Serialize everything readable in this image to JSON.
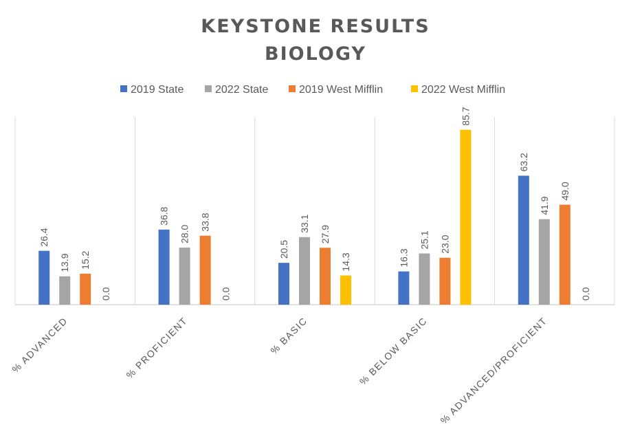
{
  "chart_data": {
    "type": "bar",
    "title_lines": [
      "KEYSTONE RESULTS",
      "BIOLOGY"
    ],
    "categories": [
      "% ADVANCED",
      "% PROFICIENT",
      "% BASIC",
      "% BELOW BASIC",
      "% ADVANCED/PROFICIENT"
    ],
    "series": [
      {
        "name": "2019 State",
        "color": "#4472C4",
        "values": [
          26.4,
          36.8,
          20.5,
          16.3,
          63.2
        ]
      },
      {
        "name": "2022 State",
        "color": "#A5A5A5",
        "values": [
          13.9,
          28.0,
          33.1,
          25.1,
          41.9
        ]
      },
      {
        "name": "2019 West Mifflin",
        "color": "#ED7D31",
        "values": [
          15.2,
          33.8,
          27.9,
          23.0,
          49.0
        ]
      },
      {
        "name": "2022 West Mifflin",
        "color": "#FFC000",
        "values": [
          0.0,
          0.0,
          14.3,
          85.7,
          0.0
        ]
      }
    ],
    "xlabel": "",
    "ylabel": "",
    "ylim": [
      0,
      92
    ],
    "grid": "vertical category separators",
    "legend": "top-center"
  }
}
